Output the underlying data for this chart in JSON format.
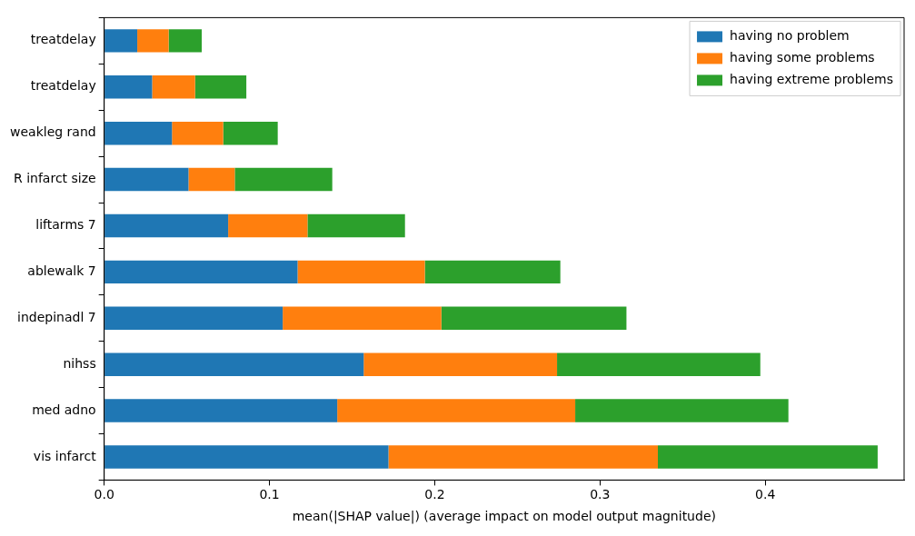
{
  "chart_data": {
    "type": "bar",
    "orientation": "horizontal",
    "stacked": true,
    "xlabel": "mean(|SHAP value|) (average impact on model output magnitude)",
    "categories": [
      "treatdelay",
      "treatdelay",
      "weakleg rand",
      "R infarct size",
      "liftarms 7",
      "ablewalk 7",
      "indepinadl 7",
      "nihss",
      "med adno",
      "vis infarct"
    ],
    "series": [
      {
        "name": "having no problem",
        "color": "#1f77b4",
        "values": [
          0.02,
          0.029,
          0.041,
          0.051,
          0.075,
          0.117,
          0.108,
          0.157,
          0.141,
          0.172
        ]
      },
      {
        "name": "having some problems",
        "color": "#ff7f0e",
        "values": [
          0.019,
          0.026,
          0.031,
          0.028,
          0.048,
          0.077,
          0.096,
          0.117,
          0.144,
          0.163
        ]
      },
      {
        "name": "having extreme problems",
        "color": "#2ca02c",
        "values": [
          0.02,
          0.031,
          0.033,
          0.059,
          0.059,
          0.082,
          0.112,
          0.123,
          0.129,
          0.133
        ]
      }
    ],
    "xlim": [
      0,
      0.484
    ],
    "xticks": [
      {
        "value": 0,
        "label": "0.0"
      },
      {
        "value": 0.1,
        "label": "0.1"
      },
      {
        "value": 0.2,
        "label": "0.2"
      },
      {
        "value": 0.3,
        "label": "0.3"
      },
      {
        "value": 0.4,
        "label": "0.4"
      }
    ],
    "grid": false,
    "legend": "top right"
  }
}
